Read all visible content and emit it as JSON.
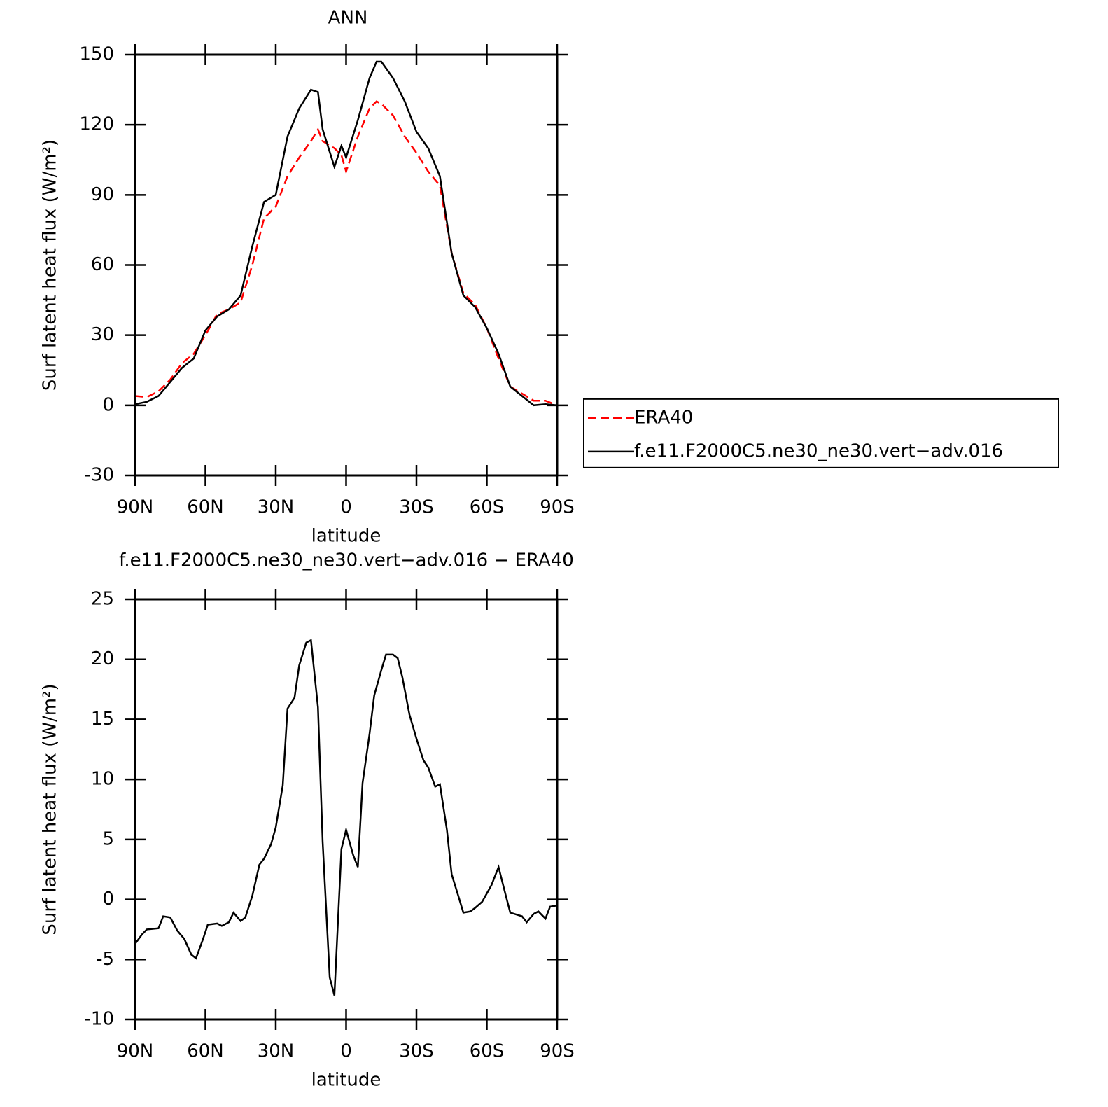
{
  "chart_data": [
    {
      "type": "line",
      "title": "ANN",
      "xlabel": "latitude",
      "ylabel": "Surf latent heat flux (W/m²)",
      "xlim": [
        90,
        -90
      ],
      "xticks": [
        {
          "value": 90,
          "label": "90N"
        },
        {
          "value": 60,
          "label": "60N"
        },
        {
          "value": 30,
          "label": "30N"
        },
        0,
        {
          "value": -30,
          "label": "30S"
        },
        {
          "value": -60,
          "label": "60S"
        },
        {
          "value": -90,
          "label": "90S"
        }
      ],
      "ylim": [
        -30,
        150
      ],
      "yticks": [
        -30,
        0,
        30,
        60,
        90,
        120,
        150
      ],
      "legend": "right",
      "x": [
        90,
        85,
        80,
        75,
        70,
        65,
        60,
        55,
        50,
        45,
        40,
        35,
        30,
        25,
        20,
        15,
        12,
        10,
        5,
        2,
        0,
        -5,
        -10,
        -13,
        -15,
        -20,
        -25,
        -30,
        -35,
        -40,
        -45,
        -50,
        -55,
        -60,
        -65,
        -70,
        -75,
        -80,
        -85,
        -90
      ],
      "series": [
        {
          "name": "ERA40",
          "color": "#ff0000",
          "linestyle": "dashed",
          "values": [
            4,
            3.5,
            6,
            11,
            18,
            22,
            30,
            39,
            41,
            44,
            60,
            80,
            85,
            98,
            106,
            113,
            118,
            113,
            110,
            107,
            100,
            115,
            127,
            130,
            129,
            124,
            115,
            108,
            100,
            94,
            65,
            48,
            43,
            33,
            20,
            8,
            5,
            2,
            2,
            0
          ]
        },
        {
          "name": "f.e11.F2000C5.ne30_ne30.vert−adv.016",
          "color": "#000000",
          "linestyle": "solid",
          "values": [
            0.5,
            1.5,
            4,
            10,
            16,
            20,
            32,
            38,
            41,
            47,
            68,
            87,
            90,
            115,
            127,
            135,
            134,
            118,
            102,
            111,
            106,
            122,
            140,
            147,
            147,
            140,
            130,
            117,
            110,
            98,
            65,
            47,
            42,
            33,
            22,
            8,
            4,
            0,
            0.5,
            0
          ]
        }
      ]
    },
    {
      "type": "line",
      "title": "f.e11.F2000C5.ne30_ne30.vert−adv.016 − ERA40",
      "xlabel": "latitude",
      "ylabel": "Surf latent heat flux (W/m²)",
      "xlim": [
        90,
        -90
      ],
      "xticks": [
        {
          "value": 90,
          "label": "90N"
        },
        {
          "value": 60,
          "label": "60N"
        },
        {
          "value": 30,
          "label": "30N"
        },
        0,
        {
          "value": -30,
          "label": "30S"
        },
        {
          "value": -60,
          "label": "60S"
        },
        {
          "value": -90,
          "label": "90S"
        }
      ],
      "ylim": [
        -10,
        25
      ],
      "yticks": [
        -10,
        -5,
        0,
        5,
        10,
        15,
        20,
        25
      ],
      "x": [
        90,
        87,
        85,
        80,
        78,
        75,
        72,
        69,
        66,
        64,
        61,
        59,
        55,
        53,
        50,
        48,
        45,
        43,
        40,
        37,
        35,
        32,
        30,
        27,
        25,
        22,
        20,
        17,
        15,
        12,
        10,
        7,
        5,
        2,
        0,
        -3,
        -5,
        -7,
        -10,
        -12,
        -15,
        -17,
        -20,
        -22,
        -24,
        -27,
        -30,
        -33,
        -35,
        -38,
        -40,
        -43,
        -45,
        -48,
        -50,
        -53,
        -55,
        -58,
        -62,
        -65,
        -68,
        -70,
        -75,
        -77,
        -80,
        -82,
        -85,
        -87,
        -90
      ],
      "series": [
        {
          "color": "#000000",
          "linestyle": "solid",
          "values": [
            -3.7,
            -2.9,
            -2.5,
            -2.4,
            -1.4,
            -1.5,
            -2.6,
            -3.3,
            -4.6,
            -4.9,
            -3.3,
            -2.1,
            -2.0,
            -2.2,
            -1.9,
            -1.1,
            -1.8,
            -1.5,
            0.3,
            2.9,
            3.4,
            4.6,
            6.0,
            9.5,
            15.9,
            16.8,
            19.5,
            21.4,
            21.6,
            16.0,
            4.8,
            -6.5,
            -8.0,
            4.2,
            5.8,
            3.7,
            2.7,
            9.7,
            13.8,
            17.0,
            19.1,
            20.4,
            20.4,
            20.1,
            18.5,
            15.4,
            13.4,
            11.6,
            11.0,
            9.4,
            9.6,
            5.8,
            2.1,
            0.2,
            -1.1,
            -1.0,
            -0.7,
            -0.2,
            1.2,
            2.7,
            0.4,
            -1.1,
            -1.4,
            -1.9,
            -1.2,
            -1.0,
            -1.6,
            -0.6,
            -0.5
          ]
        }
      ]
    }
  ]
}
